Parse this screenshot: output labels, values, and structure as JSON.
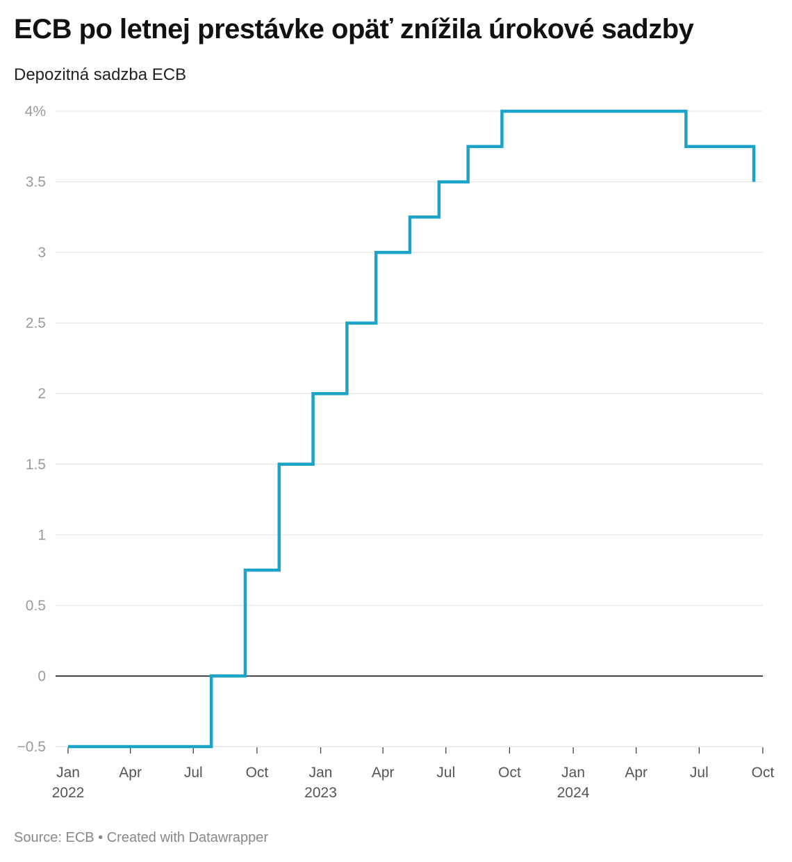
{
  "header": {
    "title": "ECB po letnej prestávke opäť znížila úrokové sadzby",
    "subtitle": "Depozitná sadzba ECB"
  },
  "footer": {
    "source_label": "Source: ECB",
    "separator": " • ",
    "credit": "Created with Datawrapper"
  },
  "chart_data": {
    "type": "line",
    "step": true,
    "title": "ECB po letnej prestávke opäť znížila úrokové sadzby",
    "subtitle": "Depozitná sadzba ECB",
    "xlabel": "",
    "ylabel": "",
    "ylim": [
      -0.5,
      4
    ],
    "xlim": [
      "2022-01-01",
      "2024-10-01"
    ],
    "series": [
      {
        "name": "Depozitná sadzba ECB",
        "color": "#1ca3c8",
        "points": [
          {
            "date": "2022-01-01",
            "value": -0.5
          },
          {
            "date": "2022-07-27",
            "value": 0
          },
          {
            "date": "2022-09-14",
            "value": 0.75
          },
          {
            "date": "2022-11-02",
            "value": 1.5
          },
          {
            "date": "2022-12-21",
            "value": 2
          },
          {
            "date": "2023-02-08",
            "value": 2.5
          },
          {
            "date": "2023-03-22",
            "value": 3
          },
          {
            "date": "2023-05-10",
            "value": 3.25
          },
          {
            "date": "2023-06-21",
            "value": 3.5
          },
          {
            "date": "2023-08-02",
            "value": 3.75
          },
          {
            "date": "2023-09-20",
            "value": 4
          },
          {
            "date": "2024-06-12",
            "value": 3.75
          },
          {
            "date": "2024-09-18",
            "value": 3.5
          }
        ]
      }
    ],
    "y_ticks": [
      {
        "value": 4,
        "label": "4%"
      },
      {
        "value": 3.5,
        "label": "3.5"
      },
      {
        "value": 3,
        "label": "3"
      },
      {
        "value": 2.5,
        "label": "2.5"
      },
      {
        "value": 2,
        "label": "2"
      },
      {
        "value": 1.5,
        "label": "1.5"
      },
      {
        "value": 1,
        "label": "1"
      },
      {
        "value": 0.5,
        "label": "0.5"
      },
      {
        "value": 0,
        "label": "0"
      },
      {
        "value": -0.5,
        "label": "−0.5"
      }
    ],
    "x_ticks": [
      {
        "date": "2022-01-01",
        "label": "Jan",
        "year": "2022"
      },
      {
        "date": "2022-04-01",
        "label": "Apr"
      },
      {
        "date": "2022-07-01",
        "label": "Jul"
      },
      {
        "date": "2022-10-01",
        "label": "Oct"
      },
      {
        "date": "2023-01-01",
        "label": "Jan",
        "year": "2023"
      },
      {
        "date": "2023-04-01",
        "label": "Apr"
      },
      {
        "date": "2023-07-01",
        "label": "Jul"
      },
      {
        "date": "2023-10-01",
        "label": "Oct"
      },
      {
        "date": "2024-01-01",
        "label": "Jan",
        "year": "2024"
      },
      {
        "date": "2024-04-01",
        "label": "Apr"
      },
      {
        "date": "2024-07-01",
        "label": "Jul"
      },
      {
        "date": "2024-10-01",
        "label": "Oct"
      }
    ],
    "zero_line": true,
    "grid": true,
    "legend": "none",
    "colors": {
      "line": "#1ca3c8",
      "grid": "#e3e3e3",
      "zero_line": "#000000"
    }
  }
}
